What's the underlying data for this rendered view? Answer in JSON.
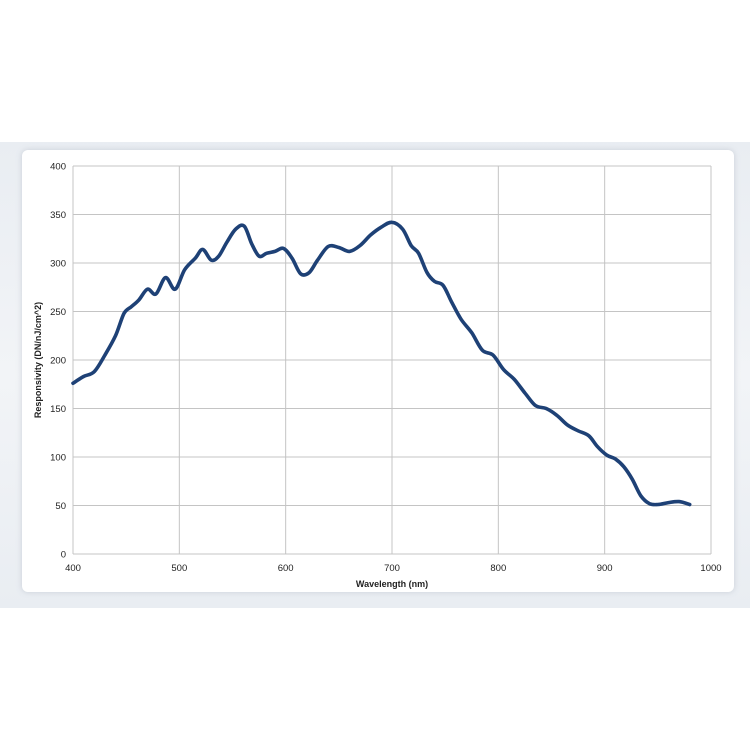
{
  "chart_data": {
    "type": "line",
    "title": "",
    "xlabel": "Wavelength (nm)",
    "ylabel": "Responsivity (DN/nJ/cm^2)",
    "xlim": [
      400,
      1000
    ],
    "ylim": [
      0,
      400
    ],
    "xticks": [
      400,
      500,
      600,
      700,
      800,
      900,
      1000
    ],
    "yticks": [
      0,
      50,
      100,
      150,
      200,
      250,
      300,
      350,
      400
    ],
    "grid": true,
    "legend": "none",
    "series": [
      {
        "color": "#1e4176",
        "x": [
          400,
          410,
          420,
          430,
          440,
          448,
          455,
          462,
          470,
          478,
          487,
          496,
          505,
          515,
          522,
          530,
          537,
          545,
          553,
          561,
          568,
          575,
          582,
          590,
          598,
          606,
          614,
          622,
          630,
          640,
          650,
          660,
          670,
          680,
          690,
          700,
          710,
          718,
          725,
          733,
          740,
          748,
          756,
          765,
          775,
          785,
          795,
          805,
          815,
          825,
          835,
          845,
          855,
          865,
          875,
          885,
          893,
          902,
          910,
          918,
          926,
          934,
          942,
          950,
          960,
          970,
          980
        ],
        "y": [
          176,
          183,
          188,
          205,
          225,
          248,
          255,
          262,
          273,
          268,
          285,
          273,
          293,
          305,
          314,
          303,
          307,
          322,
          335,
          338,
          320,
          307,
          310,
          312,
          315,
          305,
          289,
          290,
          303,
          317,
          316,
          312,
          318,
          329,
          337,
          342,
          335,
          318,
          310,
          290,
          281,
          277,
          260,
          242,
          228,
          210,
          205,
          190,
          180,
          166,
          153,
          150,
          143,
          133,
          127,
          122,
          111,
          102,
          98,
          90,
          77,
          60,
          52,
          51,
          53,
          54,
          51
        ]
      }
    ]
  }
}
